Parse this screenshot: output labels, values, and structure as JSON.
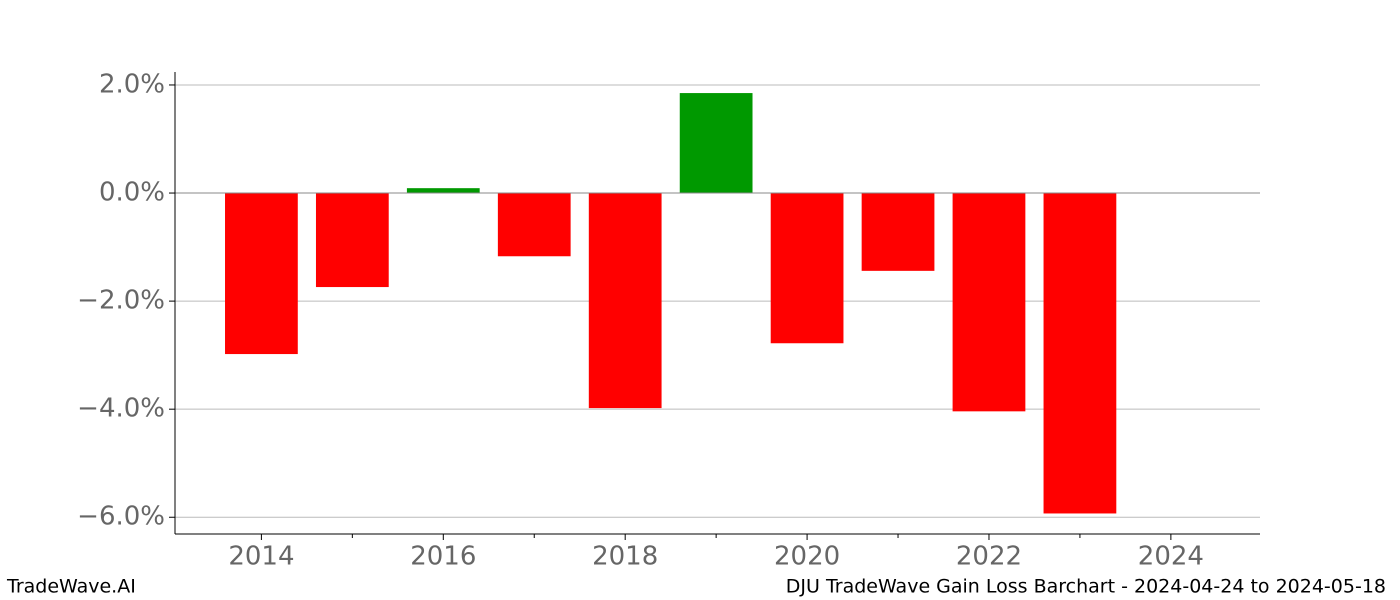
{
  "chart_data": {
    "type": "bar",
    "x": [
      2014,
      2015,
      2016,
      2017,
      2018,
      2019,
      2020,
      2021,
      2022,
      2023
    ],
    "values": [
      -2.98,
      -1.74,
      0.09,
      -1.17,
      -3.98,
      1.85,
      -2.78,
      -1.44,
      -4.04,
      -5.93
    ],
    "colors": [
      "#ff0000",
      "#ff0000",
      "#009900",
      "#ff0000",
      "#ff0000",
      "#009900",
      "#ff0000",
      "#ff0000",
      "#ff0000",
      "#ff0000"
    ],
    "xlim": [
      2013.05,
      2024.98
    ],
    "xticks": [
      2014,
      2016,
      2018,
      2020,
      2022,
      2024
    ],
    "xminorticks": [
      2015,
      2017,
      2019,
      2021,
      2023
    ],
    "ylim": [
      -6.31,
      2.24
    ],
    "yticks": [
      {
        "value": 2,
        "label": "2.0%"
      },
      {
        "value": 0,
        "label": "0.0%"
      },
      {
        "value": -2,
        "label": "−2.0%"
      },
      {
        "value": -4,
        "label": "−4.0%"
      },
      {
        "value": -6,
        "label": "−6.0%"
      }
    ],
    "grid": true,
    "bar_width": 0.8,
    "footer_left": "TradeWave.AI",
    "footer_right": "DJU TradeWave Gain Loss Barchart - 2024-04-24 to 2024-05-18"
  }
}
